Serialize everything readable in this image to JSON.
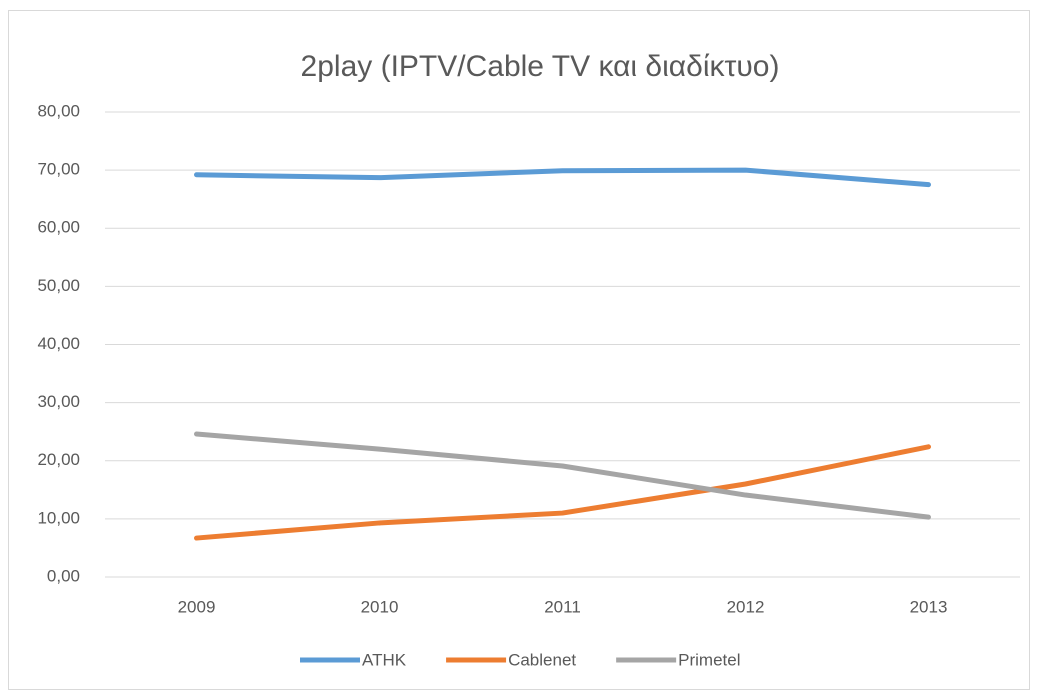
{
  "chart_data": {
    "type": "line",
    "title": "2play (IPTV/Cable TV και διαδίκτυο)",
    "categories": [
      "2009",
      "2010",
      "2011",
      "2012",
      "2013"
    ],
    "series": [
      {
        "name": "ATHK",
        "color": "#5b9bd5",
        "values": [
          69.2,
          68.7,
          69.9,
          70.0,
          67.5
        ]
      },
      {
        "name": "Cablenet",
        "color": "#ed7d31",
        "values": [
          6.7,
          9.3,
          11.0,
          16.0,
          22.4
        ]
      },
      {
        "name": "Primetel",
        "color": "#a5a5a5",
        "values": [
          24.6,
          22.0,
          19.1,
          14.1,
          10.3
        ]
      }
    ],
    "ylim": [
      0,
      80
    ],
    "yticks": [
      {
        "value": 0,
        "label": "0,00"
      },
      {
        "value": 10,
        "label": "10,00"
      },
      {
        "value": 20,
        "label": "20,00"
      },
      {
        "value": 30,
        "label": "30,00"
      },
      {
        "value": 40,
        "label": "40,00"
      },
      {
        "value": 50,
        "label": "50,00"
      },
      {
        "value": 60,
        "label": "60,00"
      },
      {
        "value": 70,
        "label": "70,00"
      },
      {
        "value": 80,
        "label": "80,00"
      }
    ],
    "grid": true,
    "legend": "bottom"
  }
}
